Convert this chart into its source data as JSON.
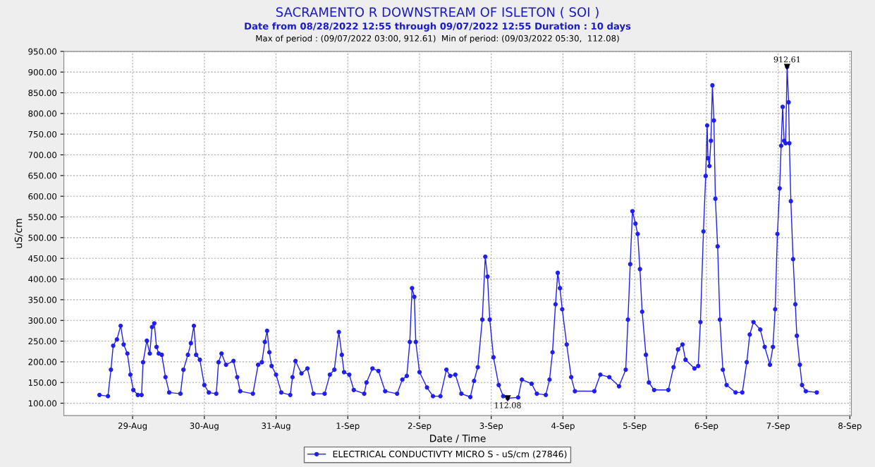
{
  "chart_data": {
    "type": "line",
    "title": "SACRAMENTO R DOWNSTREAM OF ISLETON ( SOI )",
    "subtitle": "Date from 08/28/2022 12:55 through 09/07/2022 12:55 Duration : 10 days",
    "xlabel": "Date / Time",
    "ylabel": "uS/cm",
    "annotations": [
      "Max of period : (09/07/2022 03:00, 912.61)  Min of period: (09/03/2022 05:30,  112.08)",
      {
        "text": "912.61",
        "x": "2022-09-07T03:00",
        "y": 912.61
      },
      {
        "text": "112.08",
        "x": "2022-09-03T05:30",
        "y": 112.08
      }
    ],
    "xlim": [
      "2022-08-28T01:00",
      "2022-09-08T00:30"
    ],
    "xticks": [
      {
        "value": "2022-08-29",
        "label": "29-Aug"
      },
      {
        "value": "2022-08-30",
        "label": "30-Aug"
      },
      {
        "value": "2022-08-31",
        "label": "31-Aug"
      },
      {
        "value": "2022-09-01",
        "label": "1-Sep"
      },
      {
        "value": "2022-09-02",
        "label": "2-Sep"
      },
      {
        "value": "2022-09-03",
        "label": "3-Sep"
      },
      {
        "value": "2022-09-04",
        "label": "4-Sep"
      },
      {
        "value": "2022-09-05",
        "label": "5-Sep"
      },
      {
        "value": "2022-09-06",
        "label": "6-Sep"
      },
      {
        "value": "2022-09-07",
        "label": "7-Sep"
      },
      {
        "value": "2022-09-08",
        "label": "8-Sep"
      }
    ],
    "ylim": [
      70,
      950
    ],
    "yticks": [
      {
        "value": 100,
        "label": "100.00"
      },
      {
        "value": 150,
        "label": "150.00"
      },
      {
        "value": 200,
        "label": "200.00"
      },
      {
        "value": 250,
        "label": "250.00"
      },
      {
        "value": 300,
        "label": "300.00"
      },
      {
        "value": 350,
        "label": "350.00"
      },
      {
        "value": 400,
        "label": "400.00"
      },
      {
        "value": 450,
        "label": "450.00"
      },
      {
        "value": 500,
        "label": "500.00"
      },
      {
        "value": 550,
        "label": "550.00"
      },
      {
        "value": 600,
        "label": "600.00"
      },
      {
        "value": 650,
        "label": "650.00"
      },
      {
        "value": 700,
        "label": "700.00"
      },
      {
        "value": 750,
        "label": "750.00"
      },
      {
        "value": 800,
        "label": "800.00"
      },
      {
        "value": 850,
        "label": "850.00"
      },
      {
        "value": 900,
        "label": "900.00"
      },
      {
        "value": 950,
        "label": "950.00"
      }
    ],
    "grid": true,
    "legend": "bottom",
    "marker": "circle",
    "line_style": "solid",
    "series": [
      {
        "name": "ELECTRICAL CONDUCTIVTY MICRO S - uS/cm (27846)",
        "color": "#1f1fef",
        "x": [
          "2022-08-28T12:55",
          "2022-08-28T15:45",
          "2022-08-28T16:45",
          "2022-08-28T17:30",
          "2022-08-28T18:45",
          "2022-08-28T20:00",
          "2022-08-28T21:00",
          "2022-08-28T22:15",
          "2022-08-28T23:15",
          "2022-08-29T00:15",
          "2022-08-29T01:45",
          "2022-08-29T03:00",
          "2022-08-29T03:30",
          "2022-08-29T04:45",
          "2022-08-29T05:45",
          "2022-08-29T06:30",
          "2022-08-29T07:15",
          "2022-08-29T08:00",
          "2022-08-29T08:45",
          "2022-08-29T09:45",
          "2022-08-29T11:00",
          "2022-08-29T12:15",
          "2022-08-29T16:00",
          "2022-08-29T17:00",
          "2022-08-29T18:30",
          "2022-08-29T19:30",
          "2022-08-29T20:30",
          "2022-08-29T21:15",
          "2022-08-29T22:30",
          "2022-08-30T00:00",
          "2022-08-30T01:30",
          "2022-08-30T04:00",
          "2022-08-30T04:45",
          "2022-08-30T05:45",
          "2022-08-30T07:15",
          "2022-08-30T09:45",
          "2022-08-30T11:00",
          "2022-08-30T12:00",
          "2022-08-30T16:15",
          "2022-08-30T18:00",
          "2022-08-30T19:15",
          "2022-08-30T20:15",
          "2022-08-30T21:00",
          "2022-08-30T21:45",
          "2022-08-30T22:30",
          "2022-08-31T00:00",
          "2022-08-31T01:45",
          "2022-08-31T04:45",
          "2022-08-31T05:30",
          "2022-08-31T06:30",
          "2022-08-31T08:30",
          "2022-08-31T10:30",
          "2022-08-31T12:30",
          "2022-08-31T16:15",
          "2022-08-31T18:00",
          "2022-08-31T19:30",
          "2022-08-31T21:00",
          "2022-08-31T22:00",
          "2022-08-31T22:45",
          "2022-09-01T00:30",
          "2022-09-01T02:00",
          "2022-09-01T05:30",
          "2022-09-01T06:15",
          "2022-09-01T08:15",
          "2022-09-01T10:15",
          "2022-09-01T12:30",
          "2022-09-01T16:30",
          "2022-09-01T18:15",
          "2022-09-01T19:45",
          "2022-09-01T20:45",
          "2022-09-01T21:30",
          "2022-09-01T22:15",
          "2022-09-01T22:45",
          "2022-09-02T00:00",
          "2022-09-02T02:30",
          "2022-09-02T04:30",
          "2022-09-02T07:00",
          "2022-09-02T09:00",
          "2022-09-02T10:15",
          "2022-09-02T12:00",
          "2022-09-02T14:00",
          "2022-09-02T17:00",
          "2022-09-02T18:15",
          "2022-09-02T19:30",
          "2022-09-02T21:00",
          "2022-09-02T22:00",
          "2022-09-02T22:45",
          "2022-09-02T23:30",
          "2022-09-03T00:45",
          "2022-09-03T02:30",
          "2022-09-03T04:00",
          "2022-09-03T05:30",
          "2022-09-03T09:00",
          "2022-09-03T10:15",
          "2022-09-03T13:30",
          "2022-09-03T15:15",
          "2022-09-03T18:15",
          "2022-09-03T19:30",
          "2022-09-03T20:30",
          "2022-09-03T21:30",
          "2022-09-03T22:15",
          "2022-09-03T23:00",
          "2022-09-03T23:45",
          "2022-09-04T01:15",
          "2022-09-04T02:45",
          "2022-09-04T04:00",
          "2022-09-04T10:30",
          "2022-09-04T12:30",
          "2022-09-04T15:30",
          "2022-09-04T18:45",
          "2022-09-04T21:00",
          "2022-09-04T21:45",
          "2022-09-04T22:30",
          "2022-09-04T23:15",
          "2022-09-05T00:15",
          "2022-09-05T01:00",
          "2022-09-05T01:45",
          "2022-09-05T02:30",
          "2022-09-05T03:45",
          "2022-09-05T04:45",
          "2022-09-05T06:30",
          "2022-09-05T11:15",
          "2022-09-05T13:00",
          "2022-09-05T14:30",
          "2022-09-05T16:00",
          "2022-09-05T17:00",
          "2022-09-05T20:00",
          "2022-09-05T21:15",
          "2022-09-05T22:00",
          "2022-09-05T23:00",
          "2022-09-05T23:45",
          "2022-09-06T00:15",
          "2022-09-06T00:30",
          "2022-09-06T01:00",
          "2022-09-06T01:30",
          "2022-09-06T02:00",
          "2022-09-06T02:30",
          "2022-09-06T03:00",
          "2022-09-06T03:45",
          "2022-09-06T04:30",
          "2022-09-06T05:30",
          "2022-09-06T06:45",
          "2022-09-06T09:45",
          "2022-09-06T12:00",
          "2022-09-06T13:30",
          "2022-09-06T14:30",
          "2022-09-06T15:45",
          "2022-09-06T18:00",
          "2022-09-06T19:30",
          "2022-09-06T21:15",
          "2022-09-06T22:15",
          "2022-09-06T23:00",
          "2022-09-06T23:45",
          "2022-09-07T00:30",
          "2022-09-07T01:00",
          "2022-09-07T01:30",
          "2022-09-07T02:00",
          "2022-09-07T02:30",
          "2022-09-07T03:00",
          "2022-09-07T03:30",
          "2022-09-07T03:45",
          "2022-09-07T04:15",
          "2022-09-07T05:00",
          "2022-09-07T05:45",
          "2022-09-07T06:15",
          "2022-09-07T07:15",
          "2022-09-07T08:00",
          "2022-09-07T09:15",
          "2022-09-07T12:55"
        ],
        "values": [
          120,
          117,
          181,
          239,
          254,
          287,
          242,
          220,
          169,
          132,
          120,
          120,
          199,
          251,
          220,
          284,
          293,
          236,
          220,
          217,
          163,
          126,
          123,
          181,
          217,
          245,
          287,
          217,
          205,
          144,
          126,
          123,
          199,
          220,
          193,
          202,
          163,
          129,
          123,
          193,
          199,
          248,
          275,
          223,
          190,
          169,
          126,
          120,
          163,
          202,
          172,
          184,
          123,
          123,
          169,
          181,
          272,
          217,
          175,
          169,
          132,
          123,
          150,
          184,
          178,
          129,
          123,
          157,
          166,
          248,
          378,
          357,
          248,
          175,
          138,
          117,
          117,
          181,
          166,
          169,
          123,
          115,
          154,
          187,
          302,
          454,
          406,
          302,
          211,
          144,
          117,
          112.08,
          114,
          157,
          147,
          123,
          120,
          157,
          223,
          339,
          415,
          378,
          327,
          242,
          163,
          129,
          129,
          169,
          163,
          141,
          181,
          302,
          436,
          564,
          534,
          509,
          424,
          321,
          217,
          150,
          132,
          132,
          187,
          230,
          242,
          205,
          184,
          190,
          296,
          515,
          649,
          771,
          692,
          673,
          734,
          868,
          783,
          594,
          479,
          302,
          181,
          144,
          126,
          126,
          199,
          266,
          296,
          278,
          236,
          193,
          236,
          327,
          509,
          619,
          722,
          816,
          734,
          728,
          912.61,
          827,
          728,
          588,
          448,
          339,
          263,
          193,
          144,
          129,
          126
        ]
      }
    ]
  }
}
